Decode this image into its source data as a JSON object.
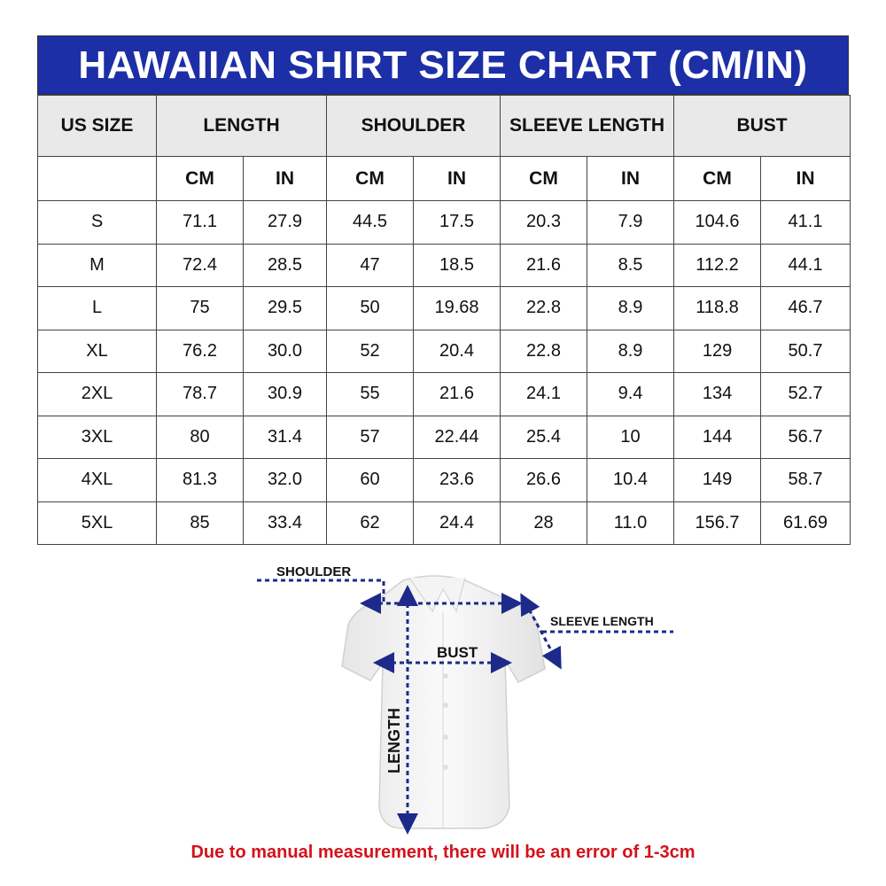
{
  "title": "HAWAIIAN SHIRT SIZE CHART (CM/IN)",
  "colors": {
    "title_bg": "#1d2fa6",
    "header_bg": "#e9e9e9",
    "arrow": "#1d2a8a",
    "note": "#d3121b"
  },
  "table": {
    "headers": [
      "US SIZE",
      "LENGTH",
      "SHOULDER",
      "SLEEVE LENGTH",
      "BUST"
    ],
    "units": [
      "CM",
      "IN",
      "CM",
      "IN",
      "CM",
      "IN",
      "CM",
      "IN"
    ],
    "rows": [
      [
        "S",
        "71.1",
        "27.9",
        "44.5",
        "17.5",
        "20.3",
        "7.9",
        "104.6",
        "41.1"
      ],
      [
        "M",
        "72.4",
        "28.5",
        "47",
        "18.5",
        "21.6",
        "8.5",
        "112.2",
        "44.1"
      ],
      [
        "L",
        "75",
        "29.5",
        "50",
        "19.68",
        "22.8",
        "8.9",
        "118.8",
        "46.7"
      ],
      [
        "XL",
        "76.2",
        "30.0",
        "52",
        "20.4",
        "22.8",
        "8.9",
        "129",
        "50.7"
      ],
      [
        "2XL",
        "78.7",
        "30.9",
        "55",
        "21.6",
        "24.1",
        "9.4",
        "134",
        "52.7"
      ],
      [
        "3XL",
        "80",
        "31.4",
        "57",
        "22.44",
        "25.4",
        "10",
        "144",
        "56.7"
      ],
      [
        "4XL",
        "81.3",
        "32.0",
        "60",
        "23.6",
        "26.6",
        "10.4",
        "149",
        "58.7"
      ],
      [
        "5XL",
        "85",
        "33.4",
        "62",
        "24.4",
        "28",
        "11.0",
        "156.7",
        "61.69"
      ]
    ]
  },
  "diagram": {
    "shoulder_label": "SHOULDER",
    "sleeve_label": "SLEEVE LENGTH",
    "bust_label": "BUST",
    "length_label": "LENGTH"
  },
  "note": "Due to manual measurement, there will be an error of 1-3cm"
}
